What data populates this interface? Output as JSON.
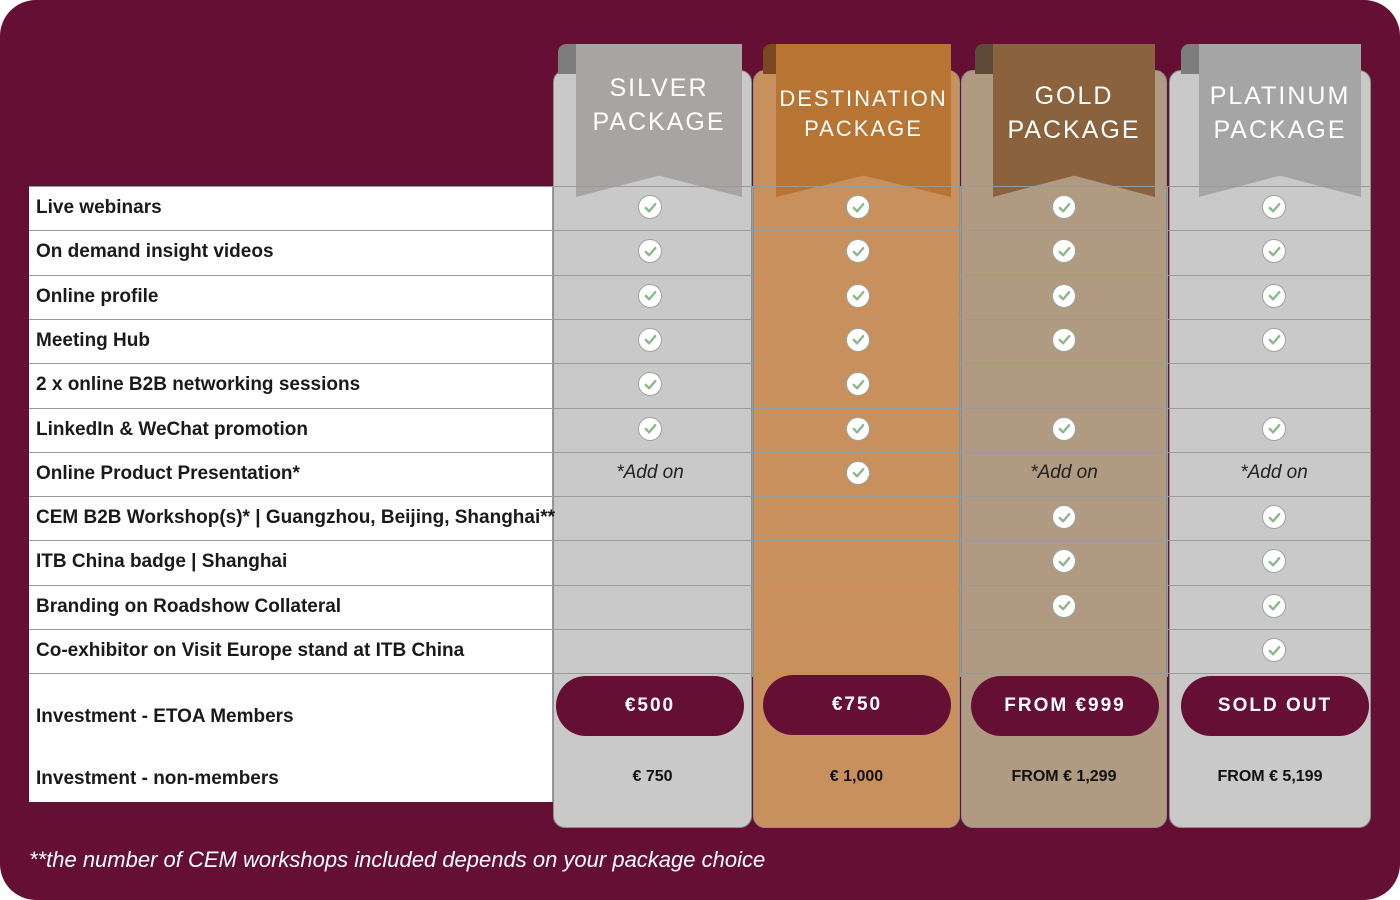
{
  "packages": [
    {
      "line1": "SILVER",
      "line2": "PACKAGE",
      "member_price": "€500",
      "nonmember_price": "€ 750"
    },
    {
      "line1": "DESTINATION",
      "line2": "PACKAGE",
      "member_price": "€750",
      "nonmember_price": "€ 1,000"
    },
    {
      "line1": "GOLD",
      "line2": "PACKAGE",
      "member_price": "FROM €999",
      "nonmember_price": "FROM € 1,299"
    },
    {
      "line1": "PLATINUM",
      "line2": "PACKAGE",
      "member_price": "SOLD OUT",
      "nonmember_price": "FROM € 5,199"
    }
  ],
  "features": [
    {
      "label": "Live webinars",
      "cells": [
        "check",
        "check",
        "check",
        "check"
      ]
    },
    {
      "label": "On demand insight videos",
      "cells": [
        "check",
        "check",
        "check",
        "check"
      ]
    },
    {
      "label": "Online profile",
      "cells": [
        "check",
        "check",
        "check",
        "check"
      ]
    },
    {
      "label": "Meeting Hub",
      "cells": [
        "check",
        "check",
        "check",
        "check"
      ]
    },
    {
      "label": "2 x online B2B networking sessions",
      "cells": [
        "check",
        "check",
        "",
        ""
      ]
    },
    {
      "label": "LinkedIn & WeChat promotion",
      "cells": [
        "check",
        "check",
        "check",
        "check"
      ]
    },
    {
      "label": "Online Product Presentation*",
      "cells": [
        "*Add on",
        "check",
        "*Add on",
        "*Add on"
      ]
    },
    {
      "label": "CEM B2B Workshop(s)* | Guangzhou, Beijing, Shanghai**",
      "cells": [
        "",
        "",
        "check",
        "check"
      ]
    },
    {
      "label": "ITB China badge | Shanghai",
      "cells": [
        "",
        "",
        "check",
        "check"
      ]
    },
    {
      "label": "Branding on Roadshow Collateral",
      "cells": [
        "",
        "",
        "check",
        "check"
      ]
    },
    {
      "label": "Co-exhibitor on Visit Europe stand at ITB China",
      "cells": [
        "",
        "",
        "",
        "check"
      ]
    }
  ],
  "investment_members_label": "Investment - ETOA Members",
  "investment_nonmembers_label": "Investment - non-members",
  "footnote": "**the number of CEM workshops included depends on your package choice",
  "colors": {
    "background": "#660f35",
    "silver": "#c9c9c9",
    "destination": "#c8905c",
    "gold": "#b09a82",
    "platinum": "#c9c9c9",
    "check_green": "#8db88d"
  },
  "icons": {
    "check": "check-circle-icon"
  }
}
